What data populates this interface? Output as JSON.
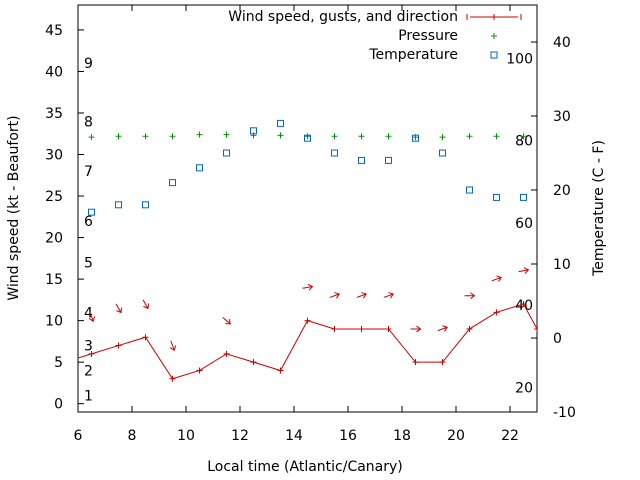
{
  "chart_data": {
    "type": "line",
    "xlabel": "Local time (Atlantic/Canary)",
    "ylabel": "Wind speed (kt - Beaufort)",
    "y2label": "Temperature (C - F)",
    "xlim": [
      6,
      23
    ],
    "ylim": [
      -1,
      48
    ],
    "y2lim": [
      -10,
      45
    ],
    "x_ticks": [
      6,
      8,
      10,
      12,
      14,
      16,
      18,
      20,
      22
    ],
    "y_ticks": [
      0,
      5,
      10,
      15,
      20,
      25,
      30,
      35,
      40,
      45
    ],
    "y2_ticks": [
      -10,
      0,
      10,
      20,
      30,
      40
    ],
    "beaufort_labels": [
      {
        "label": "1",
        "kt": 1
      },
      {
        "label": "2",
        "kt": 4
      },
      {
        "label": "3",
        "kt": 7
      },
      {
        "label": "4",
        "kt": 11
      },
      {
        "label": "5",
        "kt": 17
      },
      {
        "label": "6",
        "kt": 22
      },
      {
        "label": "7",
        "kt": 28
      },
      {
        "label": "8",
        "kt": 34
      },
      {
        "label": "9",
        "kt": 41
      }
    ],
    "fahrenheit_labels": [
      {
        "label": "20",
        "c": -6.67
      },
      {
        "label": "40",
        "c": 4.44
      },
      {
        "label": "60",
        "c": 15.56
      },
      {
        "label": "80",
        "c": 26.67
      },
      {
        "label": "100",
        "c": 37.78
      }
    ],
    "legend": [
      "Wind speed, gusts, and direction",
      "Pressure",
      "Temperature"
    ],
    "colors": {
      "wind": "#cc0000",
      "pressure": "#009900",
      "temperature": "#0066cc"
    },
    "series": [
      {
        "name": "Wind speed, gusts, and direction",
        "axis": "left",
        "x": [
          5.5,
          6.5,
          7.5,
          8.5,
          9.5,
          10.5,
          11.5,
          12.5,
          13.5,
          14.5,
          15.5,
          16.5,
          17.5,
          18.5,
          19.5,
          20.5,
          21.5,
          22.5,
          23
        ],
        "y": [
          5,
          6,
          7,
          8,
          3,
          4,
          6,
          5,
          4,
          10,
          9,
          9,
          9,
          5,
          5,
          9,
          11,
          12,
          9
        ],
        "direction_deg": [
          null,
          340,
          330,
          330,
          340,
          null,
          310,
          null,
          null,
          260,
          250,
          250,
          250,
          270,
          250,
          270,
          250,
          260,
          null
        ],
        "arrow_y_offset": [
          null,
          10.5,
          11.5,
          12,
          7,
          null,
          10,
          null,
          null,
          14,
          13,
          13,
          13,
          9,
          9,
          13,
          15,
          16,
          null
        ]
      },
      {
        "name": "Pressure",
        "axis": "left",
        "x": [
          6.5,
          7.5,
          8.5,
          9.5,
          10.5,
          11.5,
          12.5,
          13.5,
          14.5,
          15.5,
          16.5,
          17.5,
          18.5,
          19.5,
          20.5,
          21.5,
          22.5
        ],
        "y": [
          32.1,
          32.2,
          32.2,
          32.2,
          32.4,
          32.4,
          32.3,
          32.3,
          32.2,
          32.2,
          32.2,
          32.2,
          32.1,
          32.1,
          32.2,
          32.2,
          32.2
        ]
      },
      {
        "name": "Temperature",
        "axis": "right",
        "x": [
          6.5,
          7.5,
          8.5,
          9.5,
          10.5,
          11.5,
          12.5,
          13.5,
          14.5,
          15.5,
          16.5,
          17.5,
          18.5,
          19.5,
          20.5,
          21.5,
          22.5
        ],
        "y": [
          17,
          18,
          18,
          21,
          23,
          25,
          28,
          29,
          27,
          25,
          24,
          24,
          27,
          25,
          20,
          19,
          19
        ]
      }
    ]
  }
}
